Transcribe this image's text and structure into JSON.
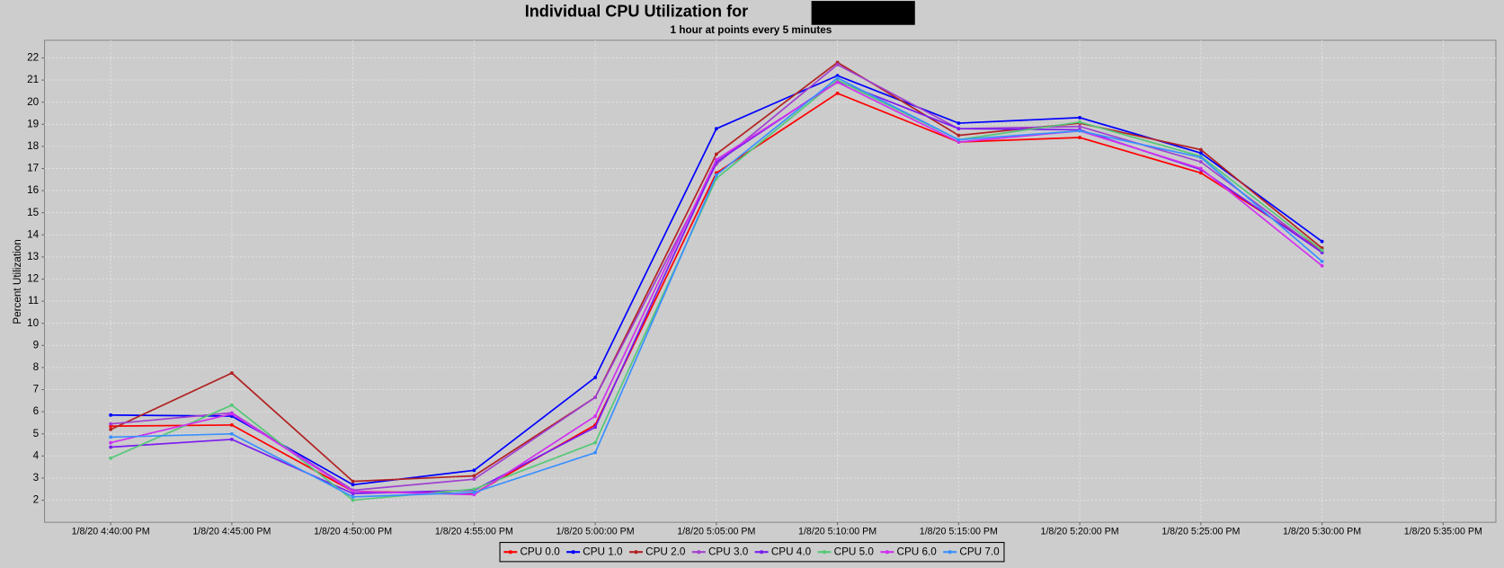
{
  "chart_data": {
    "type": "line",
    "title": "Individual CPU Utilization for",
    "subtitle": "1 hour at points every 5 minutes",
    "y_label": "Percent Utilization",
    "categories": [
      "1/8/20 4:40:00 PM",
      "1/8/20 4:45:00 PM",
      "1/8/20 4:50:00 PM",
      "1/8/20 4:55:00 PM",
      "1/8/20 5:00:00 PM",
      "1/8/20 5:05:00 PM",
      "1/8/20 5:10:00 PM",
      "1/8/20 5:15:00 PM",
      "1/8/20 5:20:00 PM",
      "1/8/20 5:25:00 PM",
      "1/8/20 5:30:00 PM",
      "1/8/20 5:35:00 PM"
    ],
    "series": [
      {
        "name": "CPU 0.0",
        "color": "#ff0000",
        "values": [
          5.35,
          5.4,
          2.4,
          2.3,
          5.4,
          16.8,
          20.4,
          18.2,
          18.4,
          16.8,
          13.3,
          null
        ]
      },
      {
        "name": "CPU 1.0",
        "color": "#0000ff",
        "values": [
          5.85,
          5.8,
          2.7,
          3.35,
          7.55,
          18.8,
          21.2,
          19.05,
          19.3,
          17.7,
          13.7,
          null
        ]
      },
      {
        "name": "CPU 2.0",
        "color": "#b22222",
        "values": [
          5.2,
          7.75,
          2.85,
          3.1,
          6.65,
          17.65,
          21.8,
          18.5,
          19.05,
          17.85,
          13.4,
          null
        ]
      },
      {
        "name": "CPU 3.0",
        "color": "#a040d0",
        "values": [
          5.45,
          5.95,
          2.45,
          2.95,
          6.65,
          17.2,
          21.7,
          18.8,
          18.9,
          17.3,
          13.2,
          null
        ]
      },
      {
        "name": "CPU 4.0",
        "color": "#7a1cf0",
        "values": [
          4.4,
          4.75,
          2.3,
          2.45,
          5.3,
          17.3,
          20.95,
          18.8,
          18.75,
          16.95,
          13.2,
          null
        ]
      },
      {
        "name": "CPU 5.0",
        "color": "#55c878",
        "values": [
          3.9,
          6.3,
          2.0,
          2.5,
          4.6,
          16.55,
          21.0,
          18.3,
          19.1,
          17.55,
          13.3,
          null
        ]
      },
      {
        "name": "CPU 6.0",
        "color": "#d030f0",
        "values": [
          4.6,
          5.9,
          2.4,
          2.25,
          5.8,
          17.4,
          20.9,
          18.2,
          18.7,
          17.0,
          12.6,
          null
        ]
      },
      {
        "name": "CPU 7.0",
        "color": "#3a90ff",
        "values": [
          4.85,
          5.0,
          2.15,
          2.35,
          4.15,
          16.7,
          21.1,
          18.3,
          18.7,
          17.5,
          12.8,
          null
        ]
      }
    ],
    "ylim": [
      1,
      22.8
    ],
    "yticks": [
      2,
      3,
      4,
      5,
      6,
      7,
      8,
      9,
      10,
      11,
      12,
      13,
      14,
      15,
      16,
      17,
      18,
      19,
      20,
      21,
      22
    ],
    "grid": true,
    "legend": "bottom"
  }
}
